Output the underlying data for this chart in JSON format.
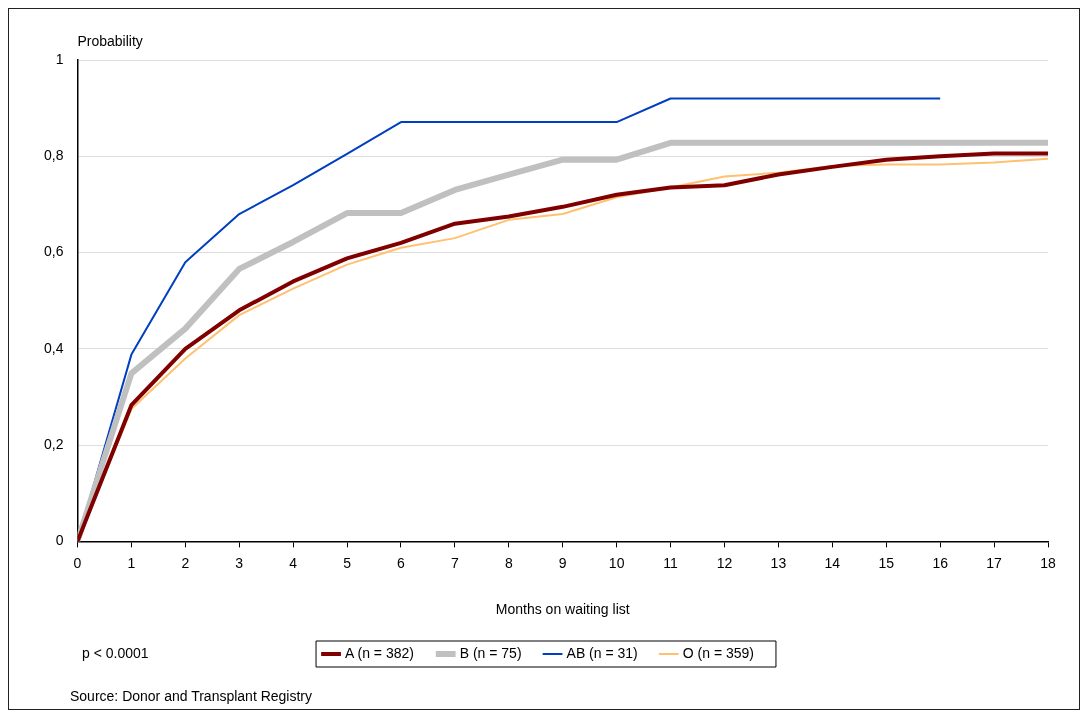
{
  "chart_data": {
    "type": "line",
    "xlabel": "Months on waiting list",
    "ylabel": "Probability",
    "x": [
      0,
      1,
      2,
      3,
      4,
      5,
      6,
      7,
      8,
      9,
      10,
      11,
      12,
      13,
      14,
      15,
      16,
      17,
      18
    ],
    "xlim": [
      0,
      18
    ],
    "xticks": [
      0,
      1,
      2,
      3,
      4,
      5,
      6,
      7,
      8,
      9,
      10,
      11,
      12,
      13,
      14,
      15,
      16,
      17,
      18
    ],
    "ylim": [
      0,
      1
    ],
    "yticks": [
      0,
      {
        "value": 0.2,
        "label": "0,2"
      },
      {
        "value": 0.4,
        "label": "0,4"
      },
      {
        "value": 0.6,
        "label": "0,6"
      },
      {
        "value": 0.8,
        "label": "0,8"
      },
      1
    ],
    "grid": "y",
    "legend": "bottom",
    "marker": "none",
    "line_style": "solid",
    "series": [
      {
        "name": "A (n = 382)",
        "color": "#800000",
        "values": [
          0,
          0.283,
          0.4,
          0.48,
          0.54,
          0.588,
          0.62,
          0.66,
          0.675,
          0.695,
          0.72,
          0.735,
          0.74,
          0.762,
          0.778,
          0.793,
          0.8,
          0.806,
          0.806
        ]
      },
      {
        "name": "B (n = 75)",
        "color": "#c0c0c0",
        "values": [
          0,
          0.349,
          0.442,
          0.566,
          0.622,
          0.682,
          0.682,
          0.73,
          0.762,
          0.793,
          0.793,
          0.828,
          0.828,
          0.828,
          0.828,
          0.828,
          0.828,
          0.828,
          0.828
        ]
      },
      {
        "name": "AB (n = 31)",
        "color": "#0040c0",
        "values": [
          0,
          0.388,
          0.58,
          0.68,
          0.74,
          0.805,
          0.871,
          0.871,
          0.871,
          0.871,
          0.871,
          0.92,
          0.92,
          0.92,
          0.92,
          0.92,
          0.92,
          null,
          null
        ]
      },
      {
        "name": "O (n = 359)",
        "color": "#ffc070",
        "values": [
          0,
          0.275,
          0.38,
          0.47,
          0.525,
          0.575,
          0.61,
          0.63,
          0.668,
          0.68,
          0.715,
          0.735,
          0.758,
          0.766,
          0.78,
          0.783,
          0.783,
          0.787,
          0.795
        ]
      }
    ],
    "annotations": [
      "p < 0.0001",
      "Source: Donor and Transplant Registry"
    ]
  }
}
